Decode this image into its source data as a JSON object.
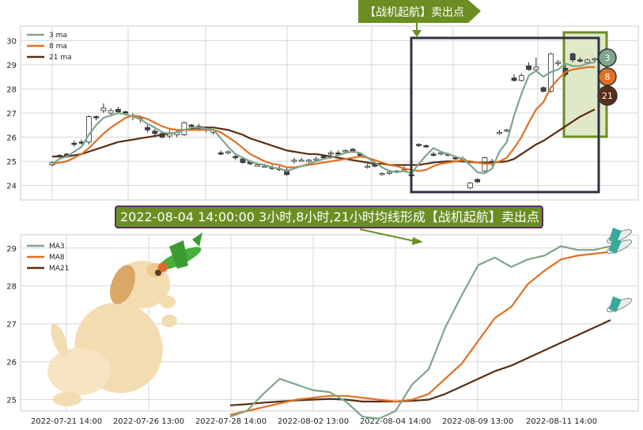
{
  "signal_label": "【战机起航】卖出点",
  "title": "2022-08-04 14:00:00 3小时,8小时,21小时均线形成【战机起航】卖出点",
  "colors": {
    "ma3": "#7fa58a",
    "ma8": "#e07020",
    "ma21": "#5a2e14",
    "banner_bg": "#6b8e23",
    "banner_border": "#5b2a6e",
    "box": "#2f3342",
    "highlight_border": "#6b8e23",
    "highlight_fill": "#dfe8c8",
    "candle_up": "#ffffff",
    "candle_down": "#3d4656"
  },
  "chart_data": [
    {
      "type": "line",
      "subtype": "candlestick_with_ma",
      "legend": [
        {
          "name": "3 ma"
        },
        {
          "name": "8 ma"
        },
        {
          "name": "21 ma"
        }
      ],
      "legend_position": "top-left",
      "ylim": [
        23.4,
        30.6
      ],
      "yticks": [
        24,
        25,
        26,
        27,
        28,
        29,
        30
      ],
      "grid": true,
      "candles": [
        [
          24.85,
          24.95,
          24.8,
          25.0
        ],
        [
          25.2,
          25.25,
          25.15,
          25.3
        ],
        [
          25.3,
          25.25,
          25.2,
          25.35
        ],
        [
          25.75,
          25.7,
          25.6,
          25.85
        ],
        [
          25.8,
          25.75,
          25.7,
          25.9
        ],
        [
          25.8,
          26.85,
          25.7,
          26.9
        ],
        [
          26.85,
          26.8,
          26.7,
          26.9
        ],
        [
          27.1,
          27.2,
          27.0,
          27.4
        ],
        [
          27.0,
          27.1,
          26.9,
          27.2
        ],
        [
          27.15,
          27.05,
          26.95,
          27.25
        ],
        [
          27.05,
          27.0,
          26.9,
          27.1
        ],
        [
          26.9,
          26.85,
          26.7,
          27.0
        ],
        [
          26.75,
          26.8,
          26.6,
          26.9
        ],
        [
          26.4,
          26.3,
          26.2,
          26.5
        ],
        [
          26.25,
          26.15,
          26.0,
          26.35
        ],
        [
          26.15,
          26.0,
          25.95,
          26.25
        ],
        [
          26.05,
          26.15,
          25.95,
          26.3
        ],
        [
          26.1,
          26.2,
          26.0,
          26.3
        ],
        [
          26.1,
          26.6,
          26.05,
          26.65
        ],
        [
          26.5,
          26.45,
          26.35,
          26.55
        ],
        [
          26.45,
          26.35,
          26.25,
          26.55
        ],
        [
          26.3,
          26.35,
          26.2,
          26.45
        ],
        [
          26.2,
          26.3,
          26.1,
          26.35
        ],
        [
          25.35,
          25.3,
          25.25,
          25.45
        ],
        [
          25.35,
          25.4,
          25.3,
          25.45
        ],
        [
          25.2,
          25.15,
          25.05,
          25.3
        ],
        [
          25.1,
          24.95,
          24.9,
          25.15
        ],
        [
          25.0,
          24.9,
          24.85,
          25.05
        ],
        [
          24.85,
          24.85,
          24.8,
          24.95
        ],
        [
          24.8,
          24.8,
          24.75,
          24.9
        ],
        [
          24.75,
          24.7,
          24.65,
          24.85
        ],
        [
          24.7,
          24.65,
          24.6,
          24.8
        ],
        [
          24.65,
          24.45,
          24.4,
          24.7
        ],
        [
          25.0,
          25.05,
          24.9,
          25.15
        ],
        [
          25.05,
          25.05,
          25.0,
          25.15
        ],
        [
          25.0,
          25.05,
          24.95,
          25.1
        ],
        [
          25.05,
          25.1,
          25.0,
          25.2
        ],
        [
          25.2,
          25.15,
          25.1,
          25.3
        ],
        [
          25.3,
          25.35,
          25.2,
          25.45
        ],
        [
          25.35,
          25.3,
          25.25,
          25.45
        ],
        [
          25.4,
          25.45,
          25.35,
          25.5
        ],
        [
          25.5,
          25.4,
          25.35,
          25.55
        ],
        [
          25.3,
          25.25,
          25.2,
          25.35
        ],
        [
          24.8,
          24.8,
          24.7,
          24.9
        ],
        [
          24.85,
          24.8,
          24.75,
          24.95
        ],
        [
          24.45,
          24.5,
          24.4,
          24.55
        ],
        [
          24.5,
          24.55,
          24.45,
          24.6
        ],
        [
          24.55,
          24.6,
          24.5,
          24.65
        ],
        [
          24.6,
          24.65,
          24.55,
          24.8
        ],
        [
          24.45,
          24.4,
          24.35,
          24.55
        ],
        [
          25.7,
          25.65,
          25.6,
          25.75
        ],
        [
          25.65,
          25.6,
          25.55,
          25.7
        ],
        [
          25.3,
          25.25,
          25.2,
          25.4
        ],
        [
          25.3,
          25.35,
          25.25,
          25.4
        ],
        [
          25.3,
          25.25,
          25.2,
          25.35
        ],
        [
          25.15,
          25.1,
          25.05,
          25.2
        ],
        [
          25.1,
          25.05,
          24.95,
          25.2
        ],
        [
          23.9,
          24.1,
          23.85,
          24.15
        ],
        [
          24.25,
          24.15,
          24.1,
          24.3
        ],
        [
          24.6,
          25.15,
          24.55,
          25.2
        ],
        [
          25.0,
          24.9,
          24.8,
          25.1
        ],
        [
          26.15,
          26.2,
          26.1,
          26.3
        ],
        [
          26.25,
          26.3,
          26.2,
          26.35
        ],
        [
          28.45,
          28.35,
          28.3,
          28.6
        ],
        [
          28.35,
          28.55,
          28.3,
          28.65
        ],
        [
          28.95,
          28.8,
          28.75,
          29.1
        ],
        [
          28.8,
          28.9,
          28.7,
          29.3
        ],
        [
          28.05,
          27.9,
          27.85,
          28.1
        ],
        [
          27.9,
          29.45,
          27.85,
          29.5
        ],
        [
          29.05,
          29.1,
          28.95,
          29.2
        ],
        [
          28.85,
          28.6,
          28.5,
          29.0
        ],
        [
          29.45,
          29.2,
          29.1,
          29.5
        ],
        [
          29.2,
          29.15,
          29.1,
          29.3
        ],
        [
          29.1,
          29.2,
          29.05,
          29.25
        ],
        [
          29.2,
          29.25,
          29.1,
          29.3
        ]
      ],
      "ma3": [
        24.9,
        25.1,
        25.2,
        25.4,
        25.6,
        26.1,
        26.5,
        26.8,
        26.9,
        27.0,
        26.95,
        26.85,
        26.75,
        26.55,
        26.4,
        26.2,
        26.15,
        26.2,
        26.3,
        26.4,
        26.4,
        26.35,
        26.3,
        25.95,
        25.6,
        25.3,
        25.15,
        25.0,
        24.9,
        24.85,
        24.75,
        24.7,
        24.6,
        24.7,
        24.8,
        24.9,
        25.0,
        25.1,
        25.15,
        25.25,
        25.35,
        25.4,
        25.35,
        25.15,
        24.95,
        24.75,
        24.6,
        24.55,
        24.6,
        24.5,
        24.9,
        25.25,
        25.55,
        25.4,
        25.3,
        25.2,
        25.1,
        24.85,
        24.55,
        24.5,
        24.7,
        25.4,
        25.8,
        26.9,
        27.8,
        28.55,
        28.75,
        28.5,
        28.7,
        28.8,
        29.05,
        28.95,
        28.95,
        29.05,
        29.1
      ],
      "ma8": [
        24.9,
        24.95,
        25.0,
        25.15,
        25.3,
        25.55,
        25.85,
        26.15,
        26.4,
        26.6,
        26.8,
        26.9,
        26.85,
        26.75,
        26.6,
        26.45,
        26.35,
        26.3,
        26.3,
        26.3,
        26.3,
        26.3,
        26.3,
        26.2,
        26.0,
        25.8,
        25.55,
        25.3,
        25.15,
        25.0,
        24.9,
        24.85,
        24.75,
        24.75,
        24.8,
        24.85,
        24.9,
        24.95,
        25.0,
        25.05,
        25.1,
        25.15,
        25.2,
        25.15,
        25.05,
        24.95,
        24.85,
        24.8,
        24.7,
        24.65,
        24.6,
        24.65,
        24.8,
        24.9,
        24.95,
        25.0,
        25.05,
        25.0,
        24.95,
        24.9,
        24.9,
        25.0,
        25.15,
        25.55,
        26.0,
        26.6,
        27.15,
        27.45,
        28.05,
        28.4,
        28.7,
        28.8,
        28.85,
        28.9,
        28.9
      ],
      "ma21": [
        25.2,
        25.2,
        25.2,
        25.25,
        25.3,
        25.4,
        25.5,
        25.6,
        25.7,
        25.8,
        25.85,
        25.9,
        25.95,
        26.0,
        26.05,
        26.1,
        26.15,
        26.2,
        26.3,
        26.35,
        26.4,
        26.4,
        26.4,
        26.35,
        26.3,
        26.2,
        26.1,
        25.95,
        25.85,
        25.75,
        25.65,
        25.55,
        25.45,
        25.4,
        25.35,
        25.3,
        25.3,
        25.25,
        25.2,
        25.15,
        25.1,
        25.05,
        25.0,
        24.95,
        24.9,
        24.9,
        24.85,
        24.85,
        24.85,
        24.85,
        24.85,
        24.9,
        24.95,
        24.98,
        25.0,
        25.0,
        25.0,
        24.97,
        24.95,
        24.95,
        24.95,
        24.97,
        25.0,
        25.1,
        25.3,
        25.5,
        25.7,
        25.85,
        26.05,
        26.25,
        26.45,
        26.65,
        26.85,
        27.0,
        27.15
      ],
      "badges": [
        "3",
        "8",
        "21"
      ]
    },
    {
      "type": "line",
      "legend": [
        {
          "name": "MA3"
        },
        {
          "name": "MA8"
        },
        {
          "name": "MA21"
        }
      ],
      "legend_position": "top-left",
      "ylim": [
        24.7,
        29.35
      ],
      "yticks": [
        25,
        26,
        27,
        28,
        29
      ],
      "xtick_labels": [
        "2022-07-21 14:00",
        "2022-07-26 13:00",
        "2022-07-28 14:00",
        "2022-08-02 13:00",
        "2022-08-04 14:00",
        "2022-08-09 13:00",
        "2022-08-11 14:00"
      ],
      "grid": true,
      "series": [
        {
          "name": "MA3",
          "values": [
            24.55,
            24.7,
            25.15,
            25.55,
            25.4,
            25.25,
            25.2,
            24.95,
            24.55,
            24.5,
            24.7,
            25.4,
            25.8,
            26.9,
            27.75,
            28.55,
            28.75,
            28.5,
            28.7,
            28.8,
            29.05,
            28.95,
            28.95,
            29.05
          ]
        },
        {
          "name": "MA8",
          "values": [
            24.6,
            24.7,
            24.8,
            24.9,
            25.0,
            25.05,
            25.1,
            25.1,
            25.05,
            25.0,
            24.95,
            25.0,
            25.15,
            25.55,
            25.95,
            26.55,
            27.15,
            27.45,
            28.05,
            28.4,
            28.7,
            28.8,
            28.85,
            28.9
          ]
        },
        {
          "name": "MA21",
          "values": [
            24.85,
            24.88,
            24.92,
            24.95,
            24.98,
            25.0,
            25.02,
            25.0,
            24.95,
            24.95,
            24.95,
            24.97,
            25.0,
            25.15,
            25.35,
            25.55,
            25.75,
            25.9,
            26.1,
            26.3,
            26.5,
            26.7,
            26.9,
            27.1
          ]
        }
      ]
    }
  ]
}
